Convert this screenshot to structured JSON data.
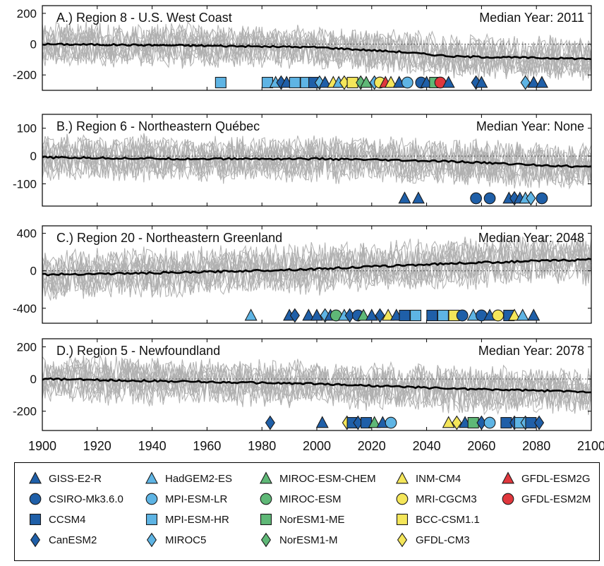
{
  "colors": {
    "noise": "#b0b0b0",
    "median": "#000000",
    "dark_blue": "#1f5fa8",
    "light_blue": "#5eb4e4",
    "green": "#5fb877",
    "yellow": "#f4e65a",
    "red": "#e0373d"
  },
  "chart_data": [
    {
      "type": "line",
      "title": "A.) Region 8 - U.S. West Coast",
      "annotation": "Median Year: 2011",
      "ylim": [
        -300,
        250
      ],
      "yticks": [
        "200",
        "0",
        "-200"
      ],
      "ytick_values": [
        200,
        0,
        -200
      ],
      "zero_dotted": true,
      "median_series": {
        "x": [
          1900,
          1950,
          2000,
          2030,
          2050,
          2100
        ],
        "y": [
          0,
          -8,
          -20,
          -50,
          -80,
          -95
        ]
      },
      "markers": [
        {
          "x": 1965,
          "model": "MPI-ESM-HR"
        },
        {
          "x": 1982,
          "model": "MPI-ESM-HR"
        },
        {
          "x": 1985,
          "model": "HadGEM2-ES"
        },
        {
          "x": 1987,
          "model": "CanESM2"
        },
        {
          "x": 1989,
          "model": "GISS-E2-R"
        },
        {
          "x": 1992,
          "model": "MPI-ESM-HR"
        },
        {
          "x": 1996,
          "model": "MPI-ESM-HR"
        },
        {
          "x": 1999,
          "model": "CCSM4"
        },
        {
          "x": 2001,
          "model": "MIROC5"
        },
        {
          "x": 2003,
          "model": "GISS-E2-R"
        },
        {
          "x": 2006,
          "model": "INM-CM4"
        },
        {
          "x": 2008,
          "model": "HadGEM2-ES"
        },
        {
          "x": 2010,
          "model": "GFDL-CM3"
        },
        {
          "x": 2013,
          "model": "BCC-CSM1.1"
        },
        {
          "x": 2016,
          "model": "NorESM1-M"
        },
        {
          "x": 2018,
          "model": "MIROC-ESM-CHEM"
        },
        {
          "x": 2021,
          "model": "MIROC5"
        },
        {
          "x": 2023,
          "model": "MRI-CGCM3"
        },
        {
          "x": 2025,
          "model": "GFDL-ESM2G"
        },
        {
          "x": 2027,
          "model": "INM-CM4"
        },
        {
          "x": 2030,
          "model": "GISS-E2-R"
        },
        {
          "x": 2033,
          "model": "MPI-ESM-LR"
        },
        {
          "x": 2038,
          "model": "CSIRO-Mk3.6.0"
        },
        {
          "x": 2040,
          "model": "GISS-E2-R"
        },
        {
          "x": 2043,
          "model": "NorESM1-ME"
        },
        {
          "x": 2045,
          "model": "GFDL-ESM2M"
        },
        {
          "x": 2048,
          "model": "GISS-E2-R"
        },
        {
          "x": 2058,
          "model": "CanESM2"
        },
        {
          "x": 2060,
          "model": "GISS-E2-R"
        },
        {
          "x": 2076,
          "model": "MIROC5"
        },
        {
          "x": 2079,
          "model": "GISS-E2-R"
        },
        {
          "x": 2082,
          "model": "GISS-E2-R"
        }
      ]
    },
    {
      "type": "line",
      "title": "B.) Region 6 - Northeastern Québec",
      "annotation": "Median Year: None",
      "ylim": [
        -180,
        150
      ],
      "yticks": [
        "100",
        "0",
        "-100"
      ],
      "ytick_values": [
        100,
        0,
        -100
      ],
      "zero_dotted": true,
      "median_series": {
        "x": [
          1900,
          1950,
          2000,
          2050,
          2100
        ],
        "y": [
          -5,
          -10,
          -10,
          -20,
          -40
        ]
      },
      "markers": [
        {
          "x": 2032,
          "model": "GISS-E2-R"
        },
        {
          "x": 2037,
          "model": "GISS-E2-R"
        },
        {
          "x": 2058,
          "model": "CSIRO-Mk3.6.0"
        },
        {
          "x": 2063,
          "model": "CSIRO-Mk3.6.0"
        },
        {
          "x": 2070,
          "model": "GISS-E2-R"
        },
        {
          "x": 2072,
          "model": "CanESM2"
        },
        {
          "x": 2074,
          "model": "GISS-E2-R"
        },
        {
          "x": 2076,
          "model": "HadGEM2-ES"
        },
        {
          "x": 2078,
          "model": "MIROC5"
        },
        {
          "x": 2082,
          "model": "CSIRO-Mk3.6.0"
        }
      ]
    },
    {
      "type": "line",
      "title": "C.) Region 20 - Northeastern Greenland",
      "annotation": "Median Year: 2048",
      "ylim": [
        -560,
        480
      ],
      "yticks": [
        "400",
        "0",
        "-400"
      ],
      "ytick_values": [
        400,
        0,
        -400
      ],
      "zero_dotted": true,
      "median_series": {
        "x": [
          1900,
          1950,
          2000,
          2050,
          2100
        ],
        "y": [
          -40,
          -20,
          20,
          80,
          120
        ]
      },
      "markers": [
        {
          "x": 1976,
          "model": "HadGEM2-ES"
        },
        {
          "x": 1990,
          "model": "GISS-E2-R"
        },
        {
          "x": 1992,
          "model": "CanESM2"
        },
        {
          "x": 1997,
          "model": "GISS-E2-R"
        },
        {
          "x": 2000,
          "model": "GISS-E2-R"
        },
        {
          "x": 2003,
          "model": "MIROC5"
        },
        {
          "x": 2005,
          "model": "GISS-E2-R"
        },
        {
          "x": 2007,
          "model": "MIROC-ESM"
        },
        {
          "x": 2010,
          "model": "HadGEM2-ES"
        },
        {
          "x": 2012,
          "model": "CanESM2"
        },
        {
          "x": 2015,
          "model": "CSIRO-Mk3.6.0"
        },
        {
          "x": 2017,
          "model": "MIROC-ESM-CHEM"
        },
        {
          "x": 2020,
          "model": "GISS-E2-R"
        },
        {
          "x": 2023,
          "model": "CanESM2"
        },
        {
          "x": 2026,
          "model": "INM-CM4"
        },
        {
          "x": 2029,
          "model": "GISS-E2-R"
        },
        {
          "x": 2032,
          "model": "CCSM4"
        },
        {
          "x": 2036,
          "model": "MPI-ESM-HR"
        },
        {
          "x": 2042,
          "model": "CCSM4"
        },
        {
          "x": 2046,
          "model": "MPI-ESM-HR"
        },
        {
          "x": 2050,
          "model": "BCC-CSM1.1"
        },
        {
          "x": 2053,
          "model": "CSIRO-Mk3.6.0"
        },
        {
          "x": 2057,
          "model": "HadGEM2-ES"
        },
        {
          "x": 2060,
          "model": "CSIRO-Mk3.6.0"
        },
        {
          "x": 2063,
          "model": "GISS-E2-R"
        },
        {
          "x": 2066,
          "model": "MRI-CGCM3"
        },
        {
          "x": 2070,
          "model": "CCSM4"
        },
        {
          "x": 2072,
          "model": "INM-CM4"
        },
        {
          "x": 2075,
          "model": "HadGEM2-ES"
        },
        {
          "x": 2079,
          "model": "GISS-E2-R"
        }
      ]
    },
    {
      "type": "line",
      "title": "D.) Region 5 - Newfoundland",
      "annotation": "Median Year: 2078",
      "ylim": [
        -320,
        250
      ],
      "yticks": [
        "200",
        "0",
        "-200"
      ],
      "ytick_values": [
        200,
        0,
        -200
      ],
      "zero_dotted": true,
      "median_series": {
        "x": [
          1900,
          1950,
          2000,
          2050,
          2100
        ],
        "y": [
          0,
          -15,
          -30,
          -60,
          -80
        ]
      },
      "markers": [
        {
          "x": 1983,
          "model": "CanESM2"
        },
        {
          "x": 2002,
          "model": "GISS-E2-R"
        },
        {
          "x": 2011,
          "model": "GFDL-CM3"
        },
        {
          "x": 2013,
          "model": "CCSM4"
        },
        {
          "x": 2015,
          "model": "CanESM2"
        },
        {
          "x": 2018,
          "model": "CCSM4"
        },
        {
          "x": 2021,
          "model": "MIROC-ESM-CHEM"
        },
        {
          "x": 2024,
          "model": "GISS-E2-R"
        },
        {
          "x": 2027,
          "model": "MPI-ESM-LR"
        },
        {
          "x": 2048,
          "model": "INM-CM4"
        },
        {
          "x": 2051,
          "model": "GFDL-CM3"
        },
        {
          "x": 2054,
          "model": "GISS-E2-R"
        },
        {
          "x": 2057,
          "model": "NorESM1-ME"
        },
        {
          "x": 2060,
          "model": "CanESM2"
        },
        {
          "x": 2063,
          "model": "MPI-ESM-LR"
        },
        {
          "x": 2069,
          "model": "CCSM4"
        },
        {
          "x": 2072,
          "model": "CanESM2"
        },
        {
          "x": 2074,
          "model": "MPI-ESM-HR"
        },
        {
          "x": 2076,
          "model": "MIROC5"
        },
        {
          "x": 2078,
          "model": "CCSM4"
        },
        {
          "x": 2081,
          "model": "CanESM2"
        }
      ]
    }
  ],
  "x_axis": {
    "xlim": [
      1900,
      2100
    ],
    "ticks": [
      "1900",
      "1920",
      "1940",
      "1960",
      "1980",
      "2000",
      "2020",
      "2040",
      "2060",
      "2080",
      "2100"
    ],
    "tick_values": [
      1900,
      1920,
      1940,
      1960,
      1980,
      2000,
      2020,
      2040,
      2060,
      2080,
      2100
    ]
  },
  "legend": {
    "placement": "bottom",
    "items": [
      {
        "label": "GISS-E2-R",
        "shape": "triangle",
        "color": "#1f5fa8"
      },
      {
        "label": "HadGEM2-ES",
        "shape": "triangle",
        "color": "#5eb4e4"
      },
      {
        "label": "MIROC-ESM-CHEM",
        "shape": "triangle",
        "color": "#5fb877"
      },
      {
        "label": "INM-CM4",
        "shape": "triangle",
        "color": "#f4e65a"
      },
      {
        "label": "GFDL-ESM2G",
        "shape": "triangle",
        "color": "#e0373d"
      },
      {
        "label": "CSIRO-Mk3.6.0",
        "shape": "circle",
        "color": "#1f5fa8"
      },
      {
        "label": "MPI-ESM-LR",
        "shape": "circle",
        "color": "#5eb4e4"
      },
      {
        "label": "MIROC-ESM",
        "shape": "circle",
        "color": "#5fb877"
      },
      {
        "label": "MRI-CGCM3",
        "shape": "circle",
        "color": "#f4e65a"
      },
      {
        "label": "GFDL-ESM2M",
        "shape": "circle",
        "color": "#e0373d"
      },
      {
        "label": "CCSM4",
        "shape": "square",
        "color": "#1f5fa8"
      },
      {
        "label": "MPI-ESM-HR",
        "shape": "square",
        "color": "#5eb4e4"
      },
      {
        "label": "NorESM1-ME",
        "shape": "square",
        "color": "#5fb877"
      },
      {
        "label": "BCC-CSM1.1",
        "shape": "square",
        "color": "#f4e65a"
      },
      {
        "label": "CanESM2",
        "shape": "diamond",
        "color": "#1f5fa8"
      },
      {
        "label": "MIROC5",
        "shape": "diamond",
        "color": "#5eb4e4"
      },
      {
        "label": "NorESM1-M",
        "shape": "diamond",
        "color": "#5fb877"
      },
      {
        "label": "GFDL-CM3",
        "shape": "diamond",
        "color": "#f4e65a"
      }
    ]
  }
}
